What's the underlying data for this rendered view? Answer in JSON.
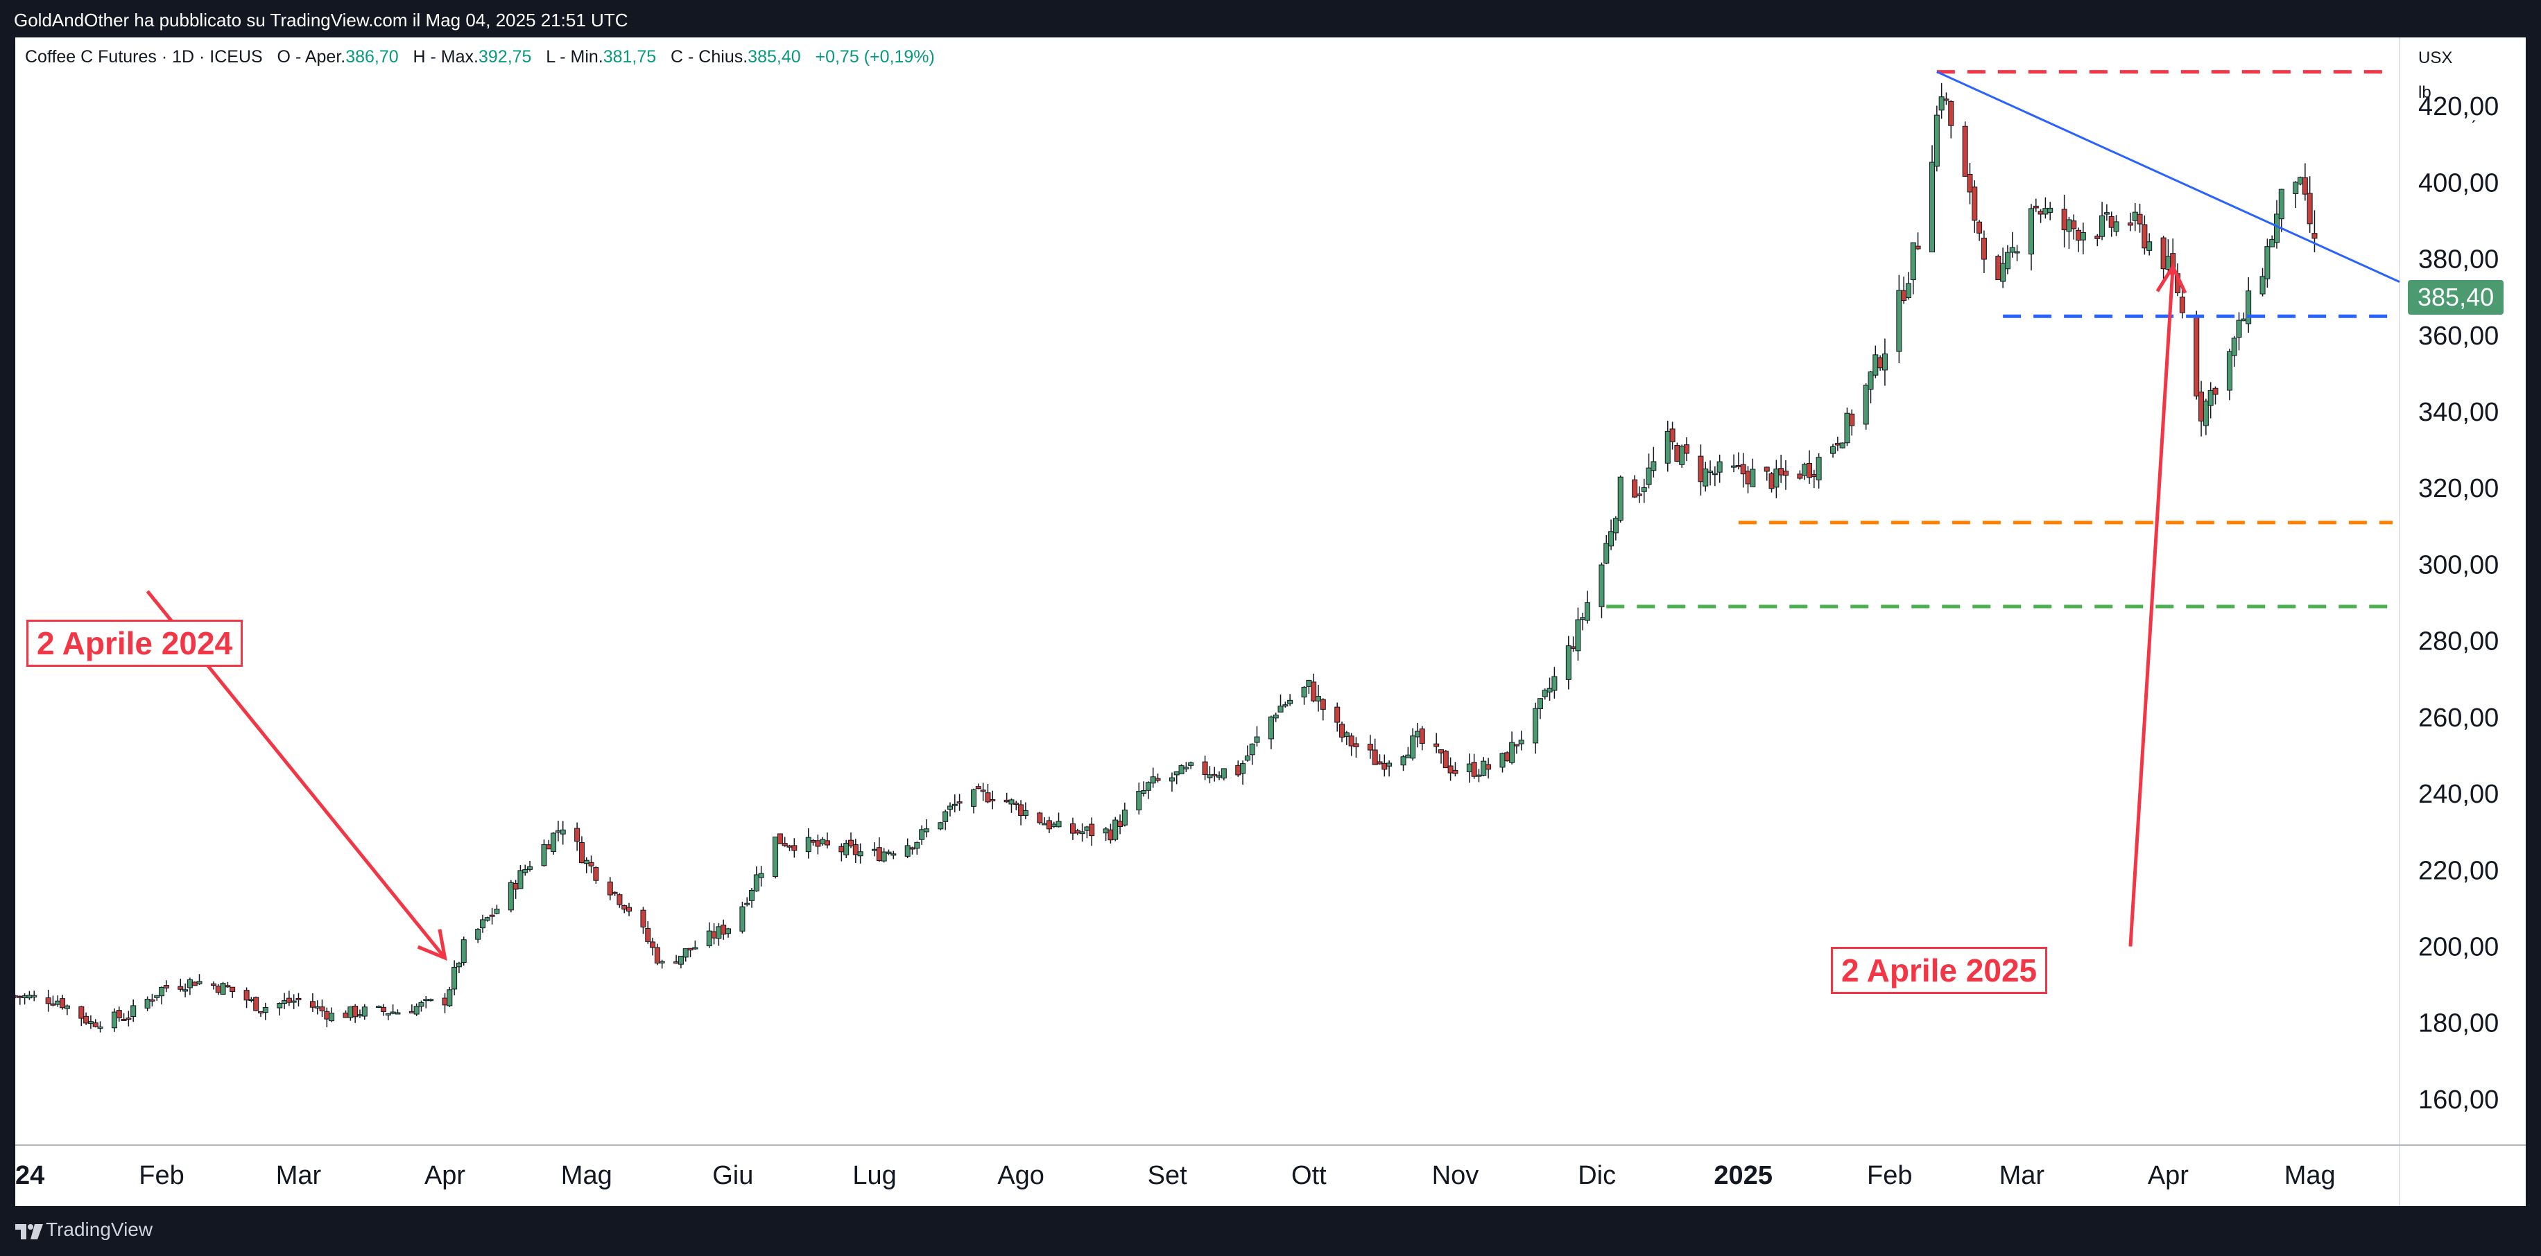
{
  "header": {
    "publisher_line": "GoldAndOther ha pubblicato su TradingView.com il Mag 04, 2025 21:51 UTC"
  },
  "legend": {
    "symbol": "Coffee C Futures · 1D · ICEUS",
    "open_label": "O - Aper.",
    "open_value": "386,70",
    "high_label": "H - Max.",
    "high_value": "392,75",
    "low_label": "L - Min.",
    "low_value": "381,75",
    "close_label": "C - Chius.",
    "close_value": "385,40",
    "change_value": "+0,75 (+0,19%)"
  },
  "price_scale": {
    "currency": "USX",
    "unit": "lb",
    "last_price": "385,40"
  },
  "callouts": {
    "left": "2 Aprile 2024",
    "right": "2 Aprile 2025"
  },
  "footer": {
    "brand": "TradingView"
  },
  "colors": {
    "up": "#4c9b70",
    "down": "#c8403c",
    "wick": "#131722",
    "trendline": "#2962ff",
    "annotation": "#f23645",
    "level_red": "#f23645",
    "level_blue": "#2962ff",
    "level_orange": "#ff7f00",
    "level_green": "#4caf50"
  },
  "chart_data": {
    "type": "candlestick",
    "y_min": 148,
    "y_max": 438,
    "y_ticks": [
      160,
      180,
      200,
      220,
      240,
      260,
      280,
      300,
      320,
      340,
      360,
      380,
      400,
      420
    ],
    "y_tick_labels": [
      "160,00",
      "180,00",
      "200,00",
      "220,00",
      "240,00",
      "260,00",
      "280,00",
      "300,00",
      "320,00",
      "340,00",
      "360,00",
      "380,00",
      "400,00",
      "420,00"
    ],
    "x_start": "2024-01-01",
    "x_end": "2025-05-20",
    "x_ticks": [
      {
        "date": "2024-01-01",
        "label": "2024",
        "bold": true
      },
      {
        "date": "2024-02-01",
        "label": "Feb"
      },
      {
        "date": "2024-03-01",
        "label": "Mar"
      },
      {
        "date": "2024-04-01",
        "label": "Apr"
      },
      {
        "date": "2024-05-01",
        "label": "Mag"
      },
      {
        "date": "2024-06-01",
        "label": "Giu"
      },
      {
        "date": "2024-07-01",
        "label": "Lug"
      },
      {
        "date": "2024-08-01",
        "label": "Ago"
      },
      {
        "date": "2024-09-01",
        "label": "Set"
      },
      {
        "date": "2024-10-01",
        "label": "Ott"
      },
      {
        "date": "2024-11-01",
        "label": "Nov"
      },
      {
        "date": "2024-12-01",
        "label": "Dic"
      },
      {
        "date": "2025-01-01",
        "label": "2025",
        "bold": true
      },
      {
        "date": "2025-02-01",
        "label": "Feb"
      },
      {
        "date": "2025-03-01",
        "label": "Mar"
      },
      {
        "date": "2025-04-01",
        "label": "Apr"
      },
      {
        "date": "2025-05-01",
        "label": "Mag"
      }
    ],
    "close_anchors": [
      [
        "2024-01-01",
        187
      ],
      [
        "2024-01-10",
        186
      ],
      [
        "2024-01-17",
        180
      ],
      [
        "2024-01-25",
        182
      ],
      [
        "2024-02-01",
        189
      ],
      [
        "2024-02-08",
        191
      ],
      [
        "2024-02-15",
        189
      ],
      [
        "2024-02-22",
        184
      ],
      [
        "2024-03-01",
        186
      ],
      [
        "2024-03-08",
        182
      ],
      [
        "2024-03-15",
        183
      ],
      [
        "2024-03-22",
        183
      ],
      [
        "2024-04-01",
        186
      ],
      [
        "2024-04-05",
        200
      ],
      [
        "2024-04-12",
        210
      ],
      [
        "2024-04-19",
        222
      ],
      [
        "2024-04-26",
        232
      ],
      [
        "2024-05-01",
        222
      ],
      [
        "2024-05-10",
        210
      ],
      [
        "2024-05-17",
        195
      ],
      [
        "2024-05-24",
        200
      ],
      [
        "2024-06-01",
        206
      ],
      [
        "2024-06-10",
        228
      ],
      [
        "2024-06-20",
        226
      ],
      [
        "2024-07-01",
        224
      ],
      [
        "2024-07-10",
        228
      ],
      [
        "2024-07-19",
        238
      ],
      [
        "2024-07-26",
        240
      ],
      [
        "2024-08-01",
        236
      ],
      [
        "2024-08-10",
        230
      ],
      [
        "2024-08-20",
        230
      ],
      [
        "2024-08-28",
        242
      ],
      [
        "2024-09-06",
        246
      ],
      [
        "2024-09-16",
        246
      ],
      [
        "2024-09-24",
        262
      ],
      [
        "2024-10-01",
        268
      ],
      [
        "2024-10-08",
        255
      ],
      [
        "2024-10-16",
        248
      ],
      [
        "2024-10-24",
        254
      ],
      [
        "2024-11-01",
        246
      ],
      [
        "2024-11-10",
        247
      ],
      [
        "2024-11-18",
        260
      ],
      [
        "2024-11-26",
        280
      ],
      [
        "2024-12-02",
        300
      ],
      [
        "2024-12-06",
        320
      ],
      [
        "2024-12-10",
        320
      ],
      [
        "2024-12-16",
        332
      ],
      [
        "2024-12-23",
        324
      ],
      [
        "2025-01-01",
        324
      ],
      [
        "2025-01-08",
        322
      ],
      [
        "2025-01-16",
        326
      ],
      [
        "2025-01-24",
        338
      ],
      [
        "2025-02-01",
        360
      ],
      [
        "2025-02-07",
        385
      ],
      [
        "2025-02-12",
        425
      ],
      [
        "2025-02-18",
        395
      ],
      [
        "2025-02-24",
        372
      ],
      [
        "2025-03-03",
        395
      ],
      [
        "2025-03-10",
        388
      ],
      [
        "2025-03-17",
        388
      ],
      [
        "2025-03-24",
        390
      ],
      [
        "2025-03-31",
        380
      ],
      [
        "2025-04-03",
        372
      ],
      [
        "2025-04-08",
        340
      ],
      [
        "2025-04-14",
        355
      ],
      [
        "2025-04-21",
        378
      ],
      [
        "2025-04-25",
        395
      ],
      [
        "2025-04-28",
        402
      ],
      [
        "2025-05-02",
        385
      ]
    ],
    "trendline": {
      "from": [
        "2025-02-11",
        429
      ],
      "to": [
        "2025-05-20",
        374
      ]
    },
    "levels": [
      {
        "name": "resistance-high",
        "value": 429,
        "from": "2025-02-11",
        "color": "#f23645"
      },
      {
        "name": "support-blue",
        "value": 365,
        "from": "2025-02-25",
        "color": "#2962ff"
      },
      {
        "name": "support-orange",
        "value": 311,
        "from": "2024-12-31",
        "color": "#ff7f00"
      },
      {
        "name": "support-green",
        "value": 289,
        "from": "2024-12-03",
        "color": "#4caf50"
      }
    ],
    "annotations": [
      {
        "label": "2 Aprile 2024",
        "from": [
          "2024-01-29",
          293
        ],
        "to": [
          "2024-04-01",
          197
        ]
      },
      {
        "label": "2 Aprile 2025",
        "from": [
          "2025-03-24",
          200
        ],
        "to": [
          "2025-04-02",
          378
        ]
      }
    ]
  }
}
